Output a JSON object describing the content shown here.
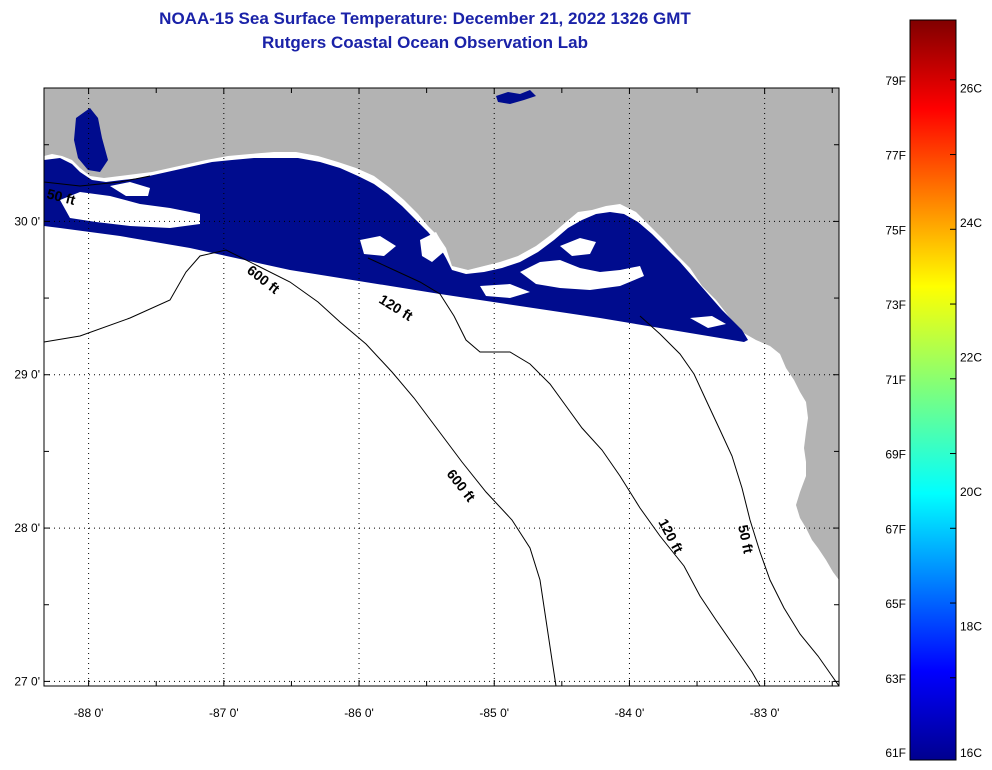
{
  "header": {
    "title": "NOAA-15 Sea Surface Temperature:  December 21, 2022 1326 GMT",
    "subtitle": "Rutgers Coastal Ocean Observation Lab"
  },
  "map": {
    "lon_range": [
      -88.33,
      -82.45
    ],
    "lat_range": [
      26.97,
      30.87
    ],
    "lon_ticks": [
      {
        "value": -88,
        "label": "-88 0'"
      },
      {
        "value": -87,
        "label": "-87 0'"
      },
      {
        "value": -86,
        "label": "-86 0'"
      },
      {
        "value": -85,
        "label": "-85 0'"
      },
      {
        "value": -84,
        "label": "-84 0'"
      },
      {
        "value": -83,
        "label": "-83 0'"
      }
    ],
    "lat_ticks": [
      {
        "value": 27,
        "label": "27 0'"
      },
      {
        "value": 28,
        "label": "28 0'"
      },
      {
        "value": 29,
        "label": "29 0'"
      },
      {
        "value": 30,
        "label": "30 0'"
      }
    ],
    "colors": {
      "land": "#b3b3b3",
      "ocean_no_data": "#ffffff",
      "sst_cold": "#000c8e",
      "grid": "#000000",
      "contour": "#000000"
    },
    "contour_labels": [
      {
        "text": "50 ft"
      },
      {
        "text": "600 ft"
      },
      {
        "text": "120 ft"
      },
      {
        "text": "600 ft"
      },
      {
        "text": "120 ft"
      },
      {
        "text": "50 ft"
      }
    ]
  },
  "colorbar": {
    "fahrenheit_labels": [
      "79F",
      "77F",
      "75F",
      "73F",
      "71F",
      "69F",
      "67F",
      "65F",
      "63F",
      "61F"
    ],
    "celsius_labels": [
      "26C",
      "24C",
      "22C",
      "20C",
      "18C",
      "16C"
    ],
    "range_c": [
      16,
      27
    ],
    "colormap": "jet"
  }
}
